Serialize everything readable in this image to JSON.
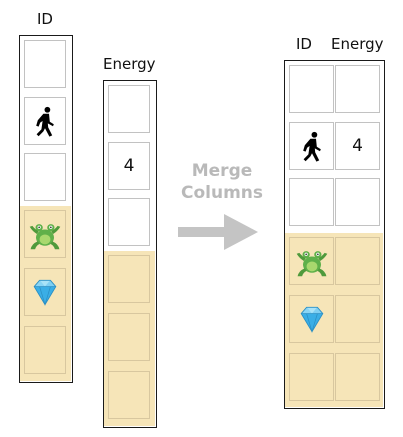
{
  "left_table": {
    "id_header": "ID",
    "energy_header": "Energy",
    "id_cells": [
      "",
      "walking-person-icon",
      "",
      "frog-icon",
      "gem-icon",
      ""
    ],
    "energy_cells": [
      "",
      "4",
      "",
      "",
      "",
      ""
    ]
  },
  "arrow": {
    "line1": "Merge",
    "line2": "Columns"
  },
  "right_table": {
    "id_header": "ID",
    "energy_header": "Energy",
    "rows": [
      {
        "id": "",
        "energy": ""
      },
      {
        "id": "walking-person-icon",
        "energy": "4"
      },
      {
        "id": "",
        "energy": ""
      },
      {
        "id": "frog-icon",
        "energy": ""
      },
      {
        "id": "gem-icon",
        "energy": ""
      },
      {
        "id": "",
        "energy": ""
      }
    ]
  },
  "colors": {
    "highlight": "#f6e5b8",
    "arrow": "#c4c4c4",
    "border": "#1a1a1a"
  }
}
